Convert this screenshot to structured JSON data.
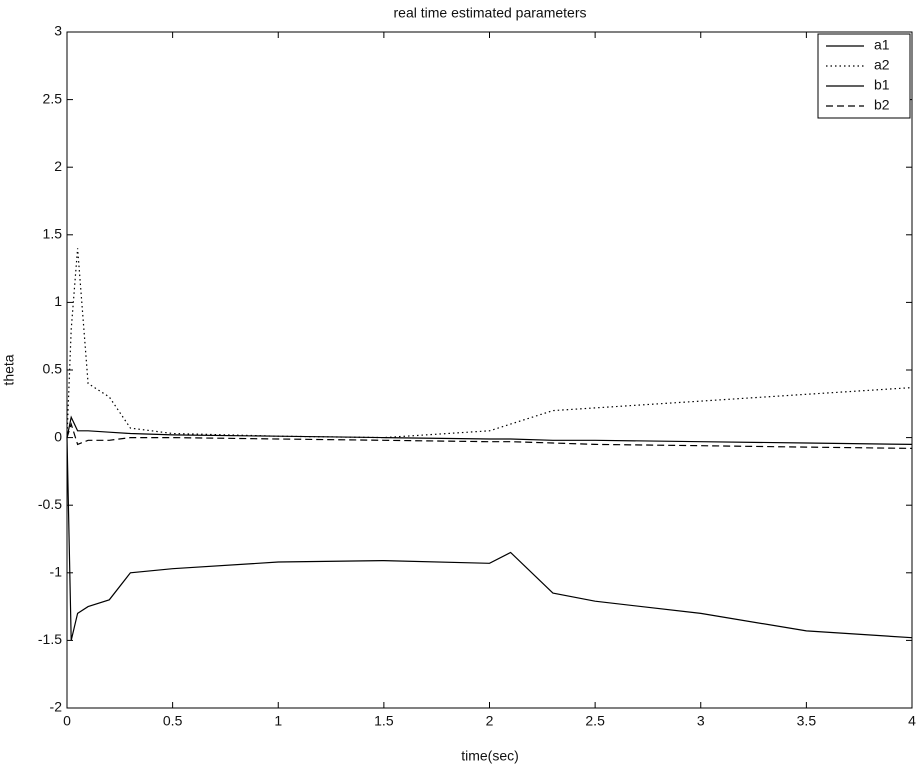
{
  "chart_data": {
    "type": "line",
    "title": "real time estimated parameters",
    "x_label": "time(sec)",
    "y_label": "theta",
    "x": [
      0,
      0.02,
      0.05,
      0.1,
      0.2,
      0.3,
      0.5,
      1,
      1.5,
      2,
      2.1,
      2.3,
      2.5,
      3,
      3.5,
      4
    ],
    "series": [
      {
        "name": "a1",
        "color": "#000000",
        "style": "solid",
        "values": [
          0,
          0.15,
          0.05,
          0.05,
          0.04,
          0.03,
          0.02,
          0.01,
          0,
          -0.01,
          -0.01,
          -0.02,
          -0.02,
          -0.03,
          -0.04,
          -0.05
        ]
      },
      {
        "name": "a2",
        "color": "#000000",
        "style": "dotted",
        "values": [
          0,
          0.8,
          1.4,
          0.4,
          0.3,
          0.07,
          0.03,
          0.01,
          0,
          0.05,
          0.1,
          0.2,
          0.22,
          0.27,
          0.32,
          0.37
        ]
      },
      {
        "name": "b1",
        "color": "#000000",
        "style": "solid",
        "values": [
          0,
          -1.5,
          -1.3,
          -1.25,
          -1.2,
          -1,
          -0.97,
          -0.92,
          -0.91,
          -0.93,
          -0.85,
          -1.15,
          -1.21,
          -1.3,
          -1.43,
          -1.48
        ]
      },
      {
        "name": "b2",
        "color": "#000000",
        "style": "dashed",
        "values": [
          0,
          0.1,
          -0.05,
          -0.02,
          -0.02,
          0,
          0,
          -0.01,
          -0.02,
          -0.03,
          -0.03,
          -0.04,
          -0.05,
          -0.06,
          -0.07,
          -0.08
        ]
      }
    ],
    "xlim": [
      0,
      4
    ],
    "xticks": [
      0,
      0.5,
      1,
      1.5,
      2,
      2.5,
      3,
      3.5,
      4
    ],
    "ylim": [
      -2,
      3
    ],
    "yticks": [
      -2,
      -1.5,
      -1,
      -0.5,
      0,
      0.5,
      1,
      1.5,
      2,
      2.5,
      3
    ],
    "grid": false,
    "legend": "top-right"
  }
}
